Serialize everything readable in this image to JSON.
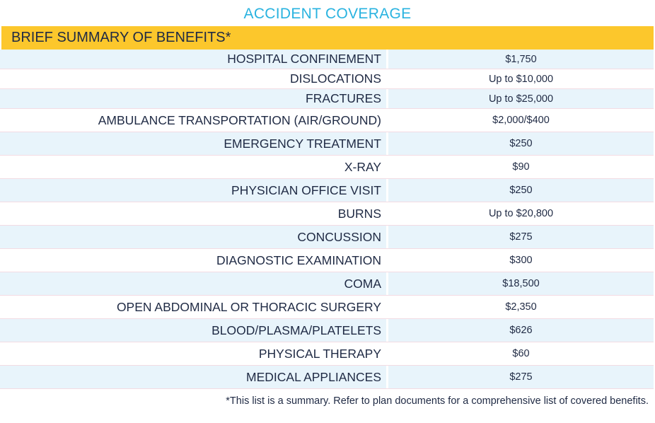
{
  "title": "ACCIDENT COVERAGE",
  "header": "BRIEF SUMMARY OF BENEFITS*",
  "benefits": [
    {
      "label": "HOSPITAL CONFINEMENT",
      "value": "$1,750"
    },
    {
      "label": "DISLOCATIONS",
      "value": "Up to $10,000"
    },
    {
      "label": "FRACTURES",
      "value": "Up to $25,000"
    },
    {
      "label": "AMBULANCE TRANSPORTATION (AIR/GROUND)",
      "value": "$2,000/$400"
    },
    {
      "label": "EMERGENCY TREATMENT",
      "value": "$250"
    },
    {
      "label": "X-RAY",
      "value": "$90"
    },
    {
      "label": "PHYSICIAN OFFICE VISIT",
      "value": "$250"
    },
    {
      "label": "BURNS",
      "value": "Up to $20,800"
    },
    {
      "label": "CONCUSSION",
      "value": "$275"
    },
    {
      "label": "DIAGNOSTIC EXAMINATION",
      "value": "$300"
    },
    {
      "label": "COMA",
      "value": "$18,500"
    },
    {
      "label": "OPEN ABDOMINAL OR THORACIC SURGERY",
      "value": "$2,350"
    },
    {
      "label": "BLOOD/PLASMA/PLATELETS",
      "value": "$626"
    },
    {
      "label": "PHYSICAL THERAPY",
      "value": "$60"
    },
    {
      "label": "MEDICAL APPLIANCES",
      "value": "$275"
    }
  ],
  "footnote": "*This list is a summary. Refer to plan documents for a comprehensive list of covered benefits."
}
